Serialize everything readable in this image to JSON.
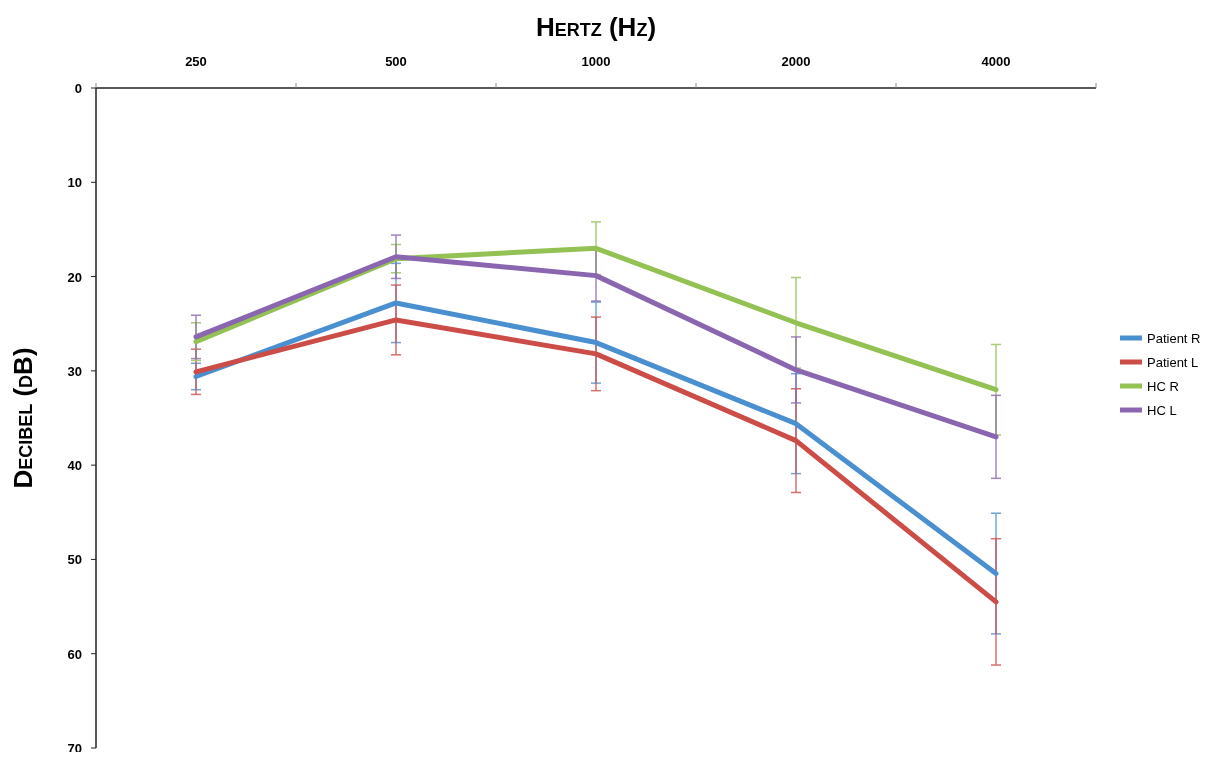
{
  "chart_data": {
    "type": "line",
    "xlabel": "Hertz (Hz)",
    "ylabel": "Decibel (dB)",
    "categories": [
      "250",
      "500",
      "1000",
      "2000",
      "4000"
    ],
    "ylim": [
      70,
      0
    ],
    "yticks": [
      0,
      10,
      20,
      30,
      40,
      50,
      60,
      70
    ],
    "grid": false,
    "legend": "right",
    "marker": "none",
    "line_style": "solid",
    "series": [
      {
        "name": "Patient R",
        "color": "#4a8fd0",
        "values": [
          30.6,
          22.8,
          27.0,
          35.6,
          51.5
        ],
        "errors": [
          1.4,
          4.2,
          4.3,
          5.3,
          6.4
        ]
      },
      {
        "name": "Patient L",
        "color": "#cc4d47",
        "values": [
          30.1,
          24.6,
          28.2,
          37.4,
          54.5
        ],
        "errors": [
          2.4,
          3.7,
          3.9,
          5.5,
          6.7
        ]
      },
      {
        "name": "HC R",
        "color": "#94c153",
        "values": [
          26.9,
          18.1,
          17.0,
          24.9,
          32.0
        ],
        "errors": [
          2.0,
          1.5,
          2.8,
          4.8,
          4.8
        ]
      },
      {
        "name": "HC L",
        "color": "#8a66b0",
        "values": [
          26.4,
          17.9,
          19.9,
          29.9,
          37.0
        ],
        "errors": [
          2.3,
          2.3,
          2.7,
          3.5,
          4.4
        ]
      }
    ]
  }
}
